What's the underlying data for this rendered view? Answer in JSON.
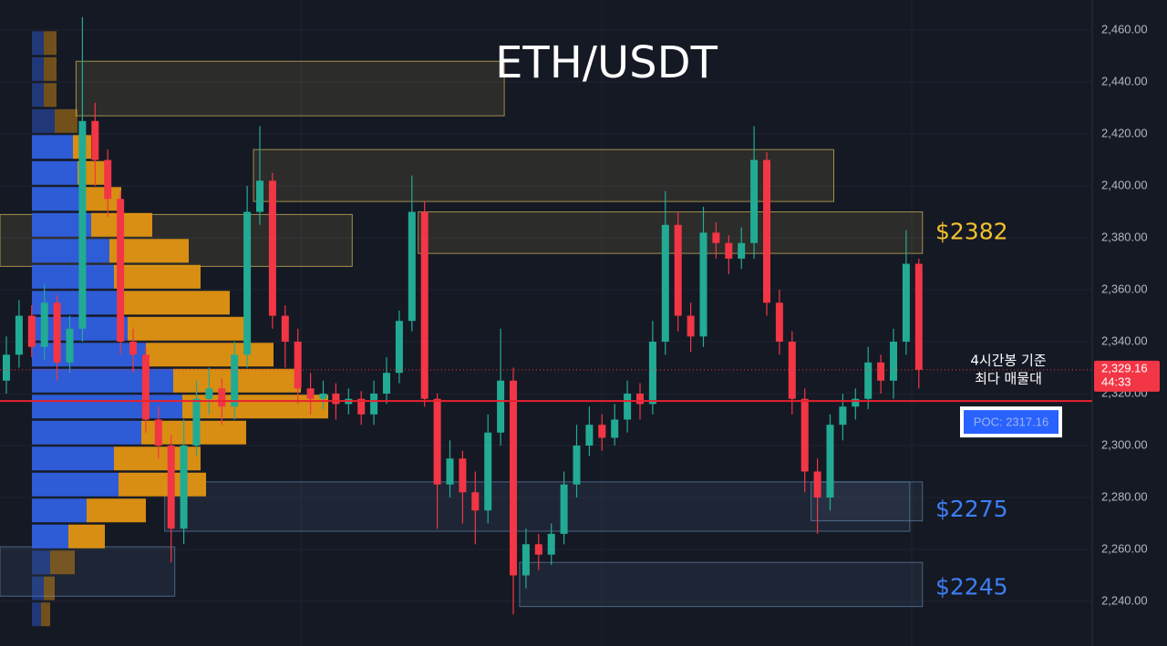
{
  "chart_data": {
    "type": "candlestick",
    "title": "ETH/USDT",
    "ylim": [
      2222.8,
      2471.6
    ],
    "yticks": [
      {
        "value": 2460,
        "label": "2,460.00"
      },
      {
        "value": 2440,
        "label": "2,440.00"
      },
      {
        "value": 2420,
        "label": "2,420.00"
      },
      {
        "value": 2400,
        "label": "2,400.00"
      },
      {
        "value": 2380,
        "label": "2,380.00"
      },
      {
        "value": 2360,
        "label": "2,360.00"
      },
      {
        "value": 2340,
        "label": "2,340.00"
      },
      {
        "value": 2320,
        "label": "2,320.00"
      },
      {
        "value": 2300,
        "label": "2,300.00"
      },
      {
        "value": 2280,
        "label": "2,280.00"
      },
      {
        "value": 2260,
        "label": "2,260.00"
      },
      {
        "value": 2240,
        "label": "2,240.00"
      }
    ],
    "grid": true,
    "up_color": "#22ab94",
    "down_color": "#f23645",
    "open": [
      2325,
      2335,
      2350,
      2338,
      2355,
      2332,
      2345,
      2425,
      2410,
      2395,
      2340,
      2335,
      2310,
      2300,
      2268,
      2300,
      2318,
      2322,
      2315,
      2335,
      2390,
      2402,
      2350,
      2340,
      2322,
      2318,
      2320,
      2316,
      2318,
      2312,
      2320,
      2328,
      2348,
      2390,
      2318,
      2285,
      2295,
      2282,
      2275,
      2305,
      2325,
      2250,
      2262,
      2258,
      2266,
      2285,
      2300,
      2308,
      2303,
      2310,
      2320,
      2316,
      2340,
      2385,
      2350,
      2342,
      2382,
      2378,
      2372,
      2378,
      2410,
      2355,
      2340,
      2318,
      2290,
      2280,
      2308,
      2315,
      2318,
      2332,
      2325,
      2340,
      2370
    ],
    "high": [
      2342,
      2356,
      2354,
      2362,
      2358,
      2350,
      2465,
      2432,
      2414,
      2398,
      2345,
      2338,
      2315,
      2304,
      2310,
      2325,
      2330,
      2326,
      2340,
      2400,
      2423,
      2405,
      2354,
      2345,
      2328,
      2325,
      2324,
      2322,
      2321,
      2325,
      2334,
      2352,
      2404,
      2394,
      2320,
      2302,
      2298,
      2290,
      2312,
      2345,
      2330,
      2268,
      2266,
      2270,
      2290,
      2308,
      2315,
      2312,
      2316,
      2325,
      2324,
      2348,
      2398,
      2390,
      2355,
      2392,
      2386,
      2381,
      2384,
      2423,
      2413,
      2360,
      2344,
      2322,
      2295,
      2312,
      2320,
      2322,
      2338,
      2335,
      2345,
      2383,
      2372
    ],
    "low": [
      2320,
      2330,
      2334,
      2333,
      2325,
      2328,
      2340,
      2400,
      2388,
      2335,
      2328,
      2305,
      2295,
      2255,
      2262,
      2296,
      2312,
      2308,
      2310,
      2330,
      2385,
      2345,
      2330,
      2316,
      2312,
      2314,
      2310,
      2312,
      2308,
      2308,
      2316,
      2324,
      2344,
      2315,
      2268,
      2280,
      2270,
      2262,
      2270,
      2300,
      2235,
      2245,
      2252,
      2254,
      2262,
      2280,
      2296,
      2298,
      2300,
      2305,
      2310,
      2312,
      2335,
      2344,
      2336,
      2338,
      2372,
      2366,
      2368,
      2372,
      2350,
      2335,
      2312,
      2282,
      2266,
      2275,
      2302,
      2310,
      2314,
      2320,
      2318,
      2335,
      2322
    ],
    "close": [
      2335,
      2350,
      2338,
      2355,
      2332,
      2345,
      2425,
      2410,
      2395,
      2340,
      2335,
      2310,
      2300,
      2268,
      2300,
      2318,
      2322,
      2315,
      2335,
      2390,
      2402,
      2350,
      2340,
      2322,
      2318,
      2320,
      2316,
      2318,
      2312,
      2320,
      2328,
      2348,
      2390,
      2318,
      2285,
      2295,
      2282,
      2275,
      2305,
      2325,
      2250,
      2262,
      2258,
      2266,
      2285,
      2300,
      2308,
      2303,
      2310,
      2320,
      2316,
      2340,
      2385,
      2350,
      2342,
      2382,
      2378,
      2372,
      2378,
      2410,
      2355,
      2340,
      2318,
      2290,
      2280,
      2308,
      2315,
      2318,
      2332,
      2325,
      2340,
      2370,
      2329.16
    ],
    "profile": {
      "levels": [
        2455,
        2445,
        2435,
        2425,
        2415,
        2405,
        2395,
        2385,
        2375,
        2365,
        2355,
        2345,
        2335,
        2325,
        2315,
        2305,
        2295,
        2285,
        2275,
        2265,
        2255,
        2245,
        2235
      ],
      "buy": [
        13,
        13,
        13,
        25,
        45,
        50,
        55,
        65,
        85,
        90,
        95,
        105,
        125,
        155,
        165,
        120,
        90,
        95,
        60,
        40,
        20,
        13,
        10
      ],
      "sell": [
        14,
        14,
        14,
        25,
        20,
        30,
        43,
        67,
        87,
        95,
        122,
        132,
        140,
        140,
        160,
        115,
        95,
        96,
        65,
        40,
        27,
        12,
        10
      ],
      "buy_color": "#2f5fe0",
      "sell_color": "#e39512"
    },
    "zones": [
      {
        "range": [
          2427,
          2448
        ],
        "from": 6,
        "to": 39,
        "color": "#c9b458"
      },
      {
        "range": [
          2394,
          2414
        ],
        "from": 20,
        "to": 65,
        "color": "#c9b458"
      },
      {
        "range": [
          2369,
          2389
        ],
        "from": 0,
        "to": 27,
        "color": "#c9b458"
      },
      {
        "range": [
          2374,
          2390
        ],
        "from": 33,
        "to": 72,
        "color": "#c9b458"
      },
      {
        "range": [
          2267,
          2286
        ],
        "from": 13,
        "to": 71,
        "color": "#5b7fa6"
      },
      {
        "range": [
          2271,
          2286
        ],
        "from": 64,
        "to": 72,
        "color": "#5b7fa6"
      },
      {
        "range": [
          2242,
          2261
        ],
        "from": 0,
        "to": 13,
        "color": "#5b7fa6"
      },
      {
        "range": [
          2238,
          2255
        ],
        "from": 41,
        "to": 72,
        "color": "#5b7fa6"
      }
    ],
    "level_labels": [
      {
        "text": "$2382",
        "value": 2382,
        "color": "#f2c230"
      },
      {
        "text": "$2275",
        "value": 2275,
        "color": "#3d7ef5"
      },
      {
        "text": "$2245",
        "value": 2245,
        "color": "#3d7ef5"
      }
    ],
    "poc": {
      "label": "POC: 2317.16",
      "value": 2317.16
    },
    "last_price": {
      "label": "2,329.16",
      "value": 2329.16,
      "countdown": "44:33"
    },
    "note": [
      "4시간봉 기준",
      "최다 매물대"
    ]
  }
}
